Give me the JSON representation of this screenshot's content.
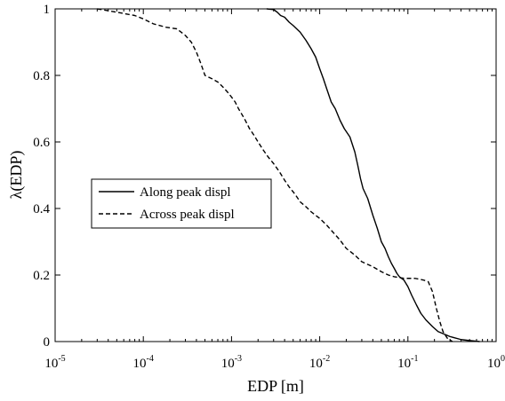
{
  "chart_data": {
    "type": "line",
    "xlabel": "EDP [m]",
    "ylabel": "λ(EDP)",
    "xscale": "log",
    "xlim": [
      1e-05,
      1
    ],
    "ylim": [
      0,
      1
    ],
    "grid": false,
    "legend_position": "left",
    "x_ticks": [
      {
        "base": "10",
        "exp": "-5"
      },
      {
        "base": "10",
        "exp": "-4"
      },
      {
        "base": "10",
        "exp": "-3"
      },
      {
        "base": "10",
        "exp": "-2"
      },
      {
        "base": "10",
        "exp": "-1"
      },
      {
        "base": "10",
        "exp": "0"
      }
    ],
    "y_ticks": [
      "0",
      "0.2",
      "0.4",
      "0.6",
      "0.8",
      "1"
    ],
    "series": [
      {
        "name": "Along peak displ",
        "line_style": "solid",
        "color": "#000000",
        "points": [
          [
            0.0025,
            1.0
          ],
          [
            0.003,
            0.998
          ],
          [
            0.0033,
            0.99
          ],
          [
            0.0036,
            0.98
          ],
          [
            0.004,
            0.975
          ],
          [
            0.0045,
            0.96
          ],
          [
            0.005,
            0.95
          ],
          [
            0.006,
            0.93
          ],
          [
            0.007,
            0.905
          ],
          [
            0.008,
            0.88
          ],
          [
            0.009,
            0.855
          ],
          [
            0.01,
            0.82
          ],
          [
            0.011,
            0.79
          ],
          [
            0.012,
            0.76
          ],
          [
            0.0135,
            0.72
          ],
          [
            0.015,
            0.7
          ],
          [
            0.017,
            0.665
          ],
          [
            0.019,
            0.64
          ],
          [
            0.022,
            0.615
          ],
          [
            0.025,
            0.57
          ],
          [
            0.027,
            0.53
          ],
          [
            0.029,
            0.49
          ],
          [
            0.031,
            0.46
          ],
          [
            0.035,
            0.43
          ],
          [
            0.04,
            0.38
          ],
          [
            0.045,
            0.34
          ],
          [
            0.05,
            0.3
          ],
          [
            0.055,
            0.28
          ],
          [
            0.06,
            0.255
          ],
          [
            0.065,
            0.235
          ],
          [
            0.07,
            0.22
          ],
          [
            0.075,
            0.205
          ],
          [
            0.08,
            0.195
          ],
          [
            0.09,
            0.185
          ],
          [
            0.1,
            0.165
          ],
          [
            0.11,
            0.14
          ],
          [
            0.125,
            0.11
          ],
          [
            0.14,
            0.085
          ],
          [
            0.16,
            0.065
          ],
          [
            0.19,
            0.045
          ],
          [
            0.22,
            0.03
          ],
          [
            0.26,
            0.022
          ],
          [
            0.3,
            0.015
          ],
          [
            0.4,
            0.006
          ],
          [
            0.5,
            0.003
          ],
          [
            0.65,
            0.0
          ]
        ]
      },
      {
        "name": "Across peak displ",
        "line_style": "dashed",
        "color": "#000000",
        "points": [
          [
            3e-05,
            1.0
          ],
          [
            5e-05,
            0.99
          ],
          [
            8e-05,
            0.98
          ],
          [
            0.0001,
            0.97
          ],
          [
            0.00013,
            0.955
          ],
          [
            0.00018,
            0.945
          ],
          [
            0.00024,
            0.94
          ],
          [
            0.0003,
            0.92
          ],
          [
            0.00035,
            0.9
          ],
          [
            0.0004,
            0.87
          ],
          [
            0.00045,
            0.835
          ],
          [
            0.0005,
            0.8
          ],
          [
            0.0006,
            0.79
          ],
          [
            0.0007,
            0.78
          ],
          [
            0.0008,
            0.765
          ],
          [
            0.0009,
            0.75
          ],
          [
            0.001,
            0.735
          ],
          [
            0.0011,
            0.72
          ],
          [
            0.0012,
            0.7
          ],
          [
            0.0014,
            0.67
          ],
          [
            0.0016,
            0.64
          ],
          [
            0.0018,
            0.62
          ],
          [
            0.002,
            0.6
          ],
          [
            0.0023,
            0.575
          ],
          [
            0.0026,
            0.555
          ],
          [
            0.003,
            0.535
          ],
          [
            0.0035,
            0.51
          ],
          [
            0.004,
            0.485
          ],
          [
            0.0045,
            0.465
          ],
          [
            0.005,
            0.45
          ],
          [
            0.0055,
            0.435
          ],
          [
            0.006,
            0.42
          ],
          [
            0.007,
            0.405
          ],
          [
            0.008,
            0.39
          ],
          [
            0.01,
            0.37
          ],
          [
            0.012,
            0.35
          ],
          [
            0.014,
            0.33
          ],
          [
            0.017,
            0.305
          ],
          [
            0.02,
            0.28
          ],
          [
            0.025,
            0.26
          ],
          [
            0.03,
            0.24
          ],
          [
            0.04,
            0.225
          ],
          [
            0.05,
            0.21
          ],
          [
            0.06,
            0.2
          ],
          [
            0.07,
            0.195
          ],
          [
            0.09,
            0.19
          ],
          [
            0.12,
            0.19
          ],
          [
            0.15,
            0.185
          ],
          [
            0.17,
            0.18
          ],
          [
            0.19,
            0.15
          ],
          [
            0.21,
            0.1
          ],
          [
            0.23,
            0.06
          ],
          [
            0.25,
            0.03
          ],
          [
            0.28,
            0.01
          ],
          [
            0.32,
            0.0
          ]
        ]
      }
    ]
  }
}
